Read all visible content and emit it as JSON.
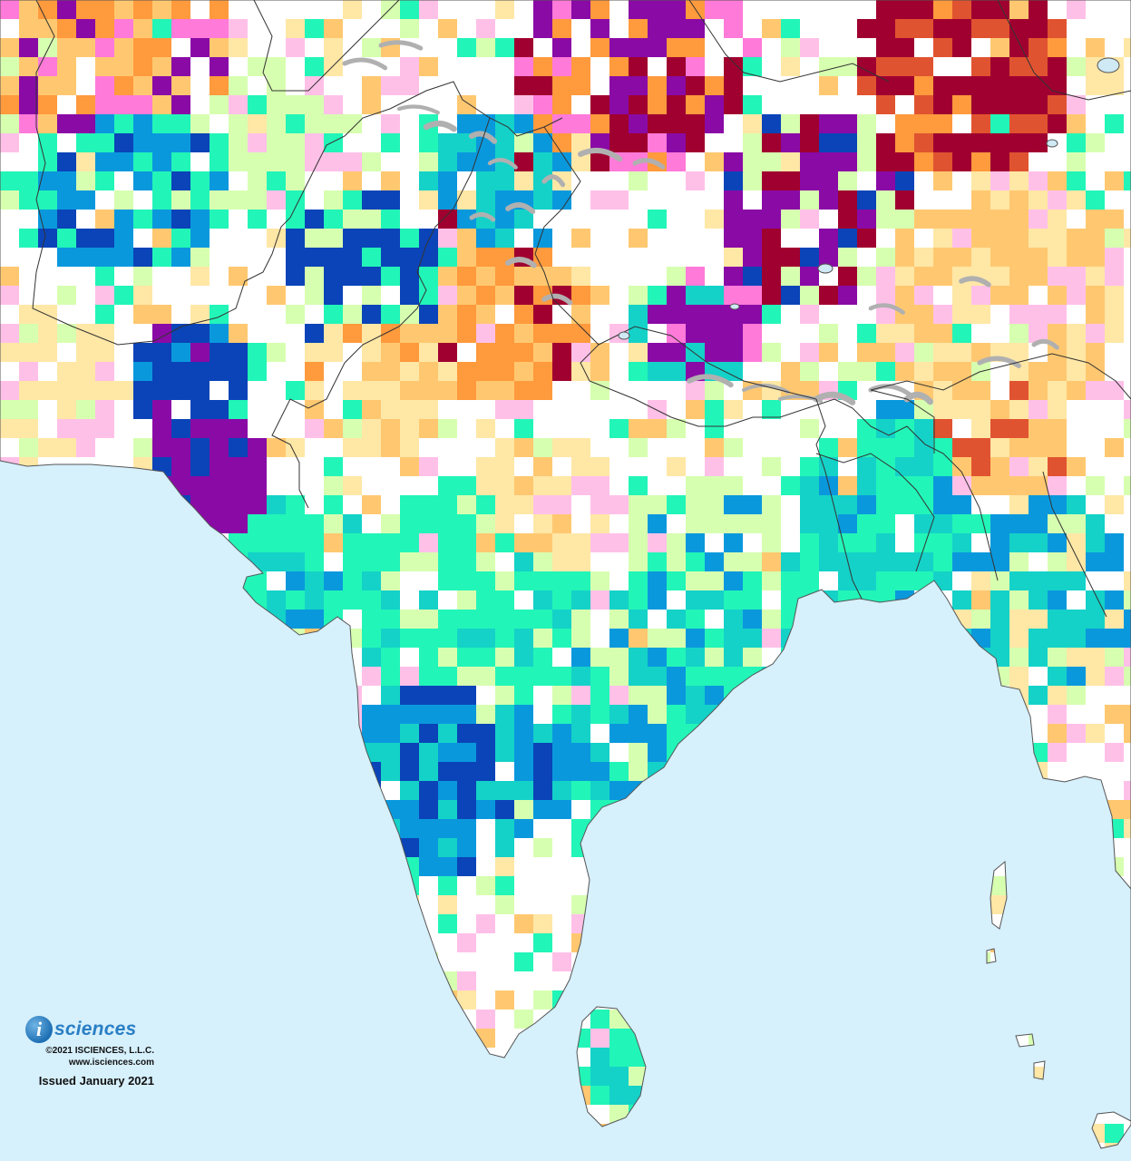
{
  "map": {
    "ocean_color": "#d6f0fc",
    "land_base_color": "#ffffff",
    "border_color": "#333333",
    "glacier_color": "#b0b0b0",
    "lake_color": "#cfe9f5"
  },
  "palette": {
    "dry_light": "#ffe7a6",
    "dry_mid": "#ffc870",
    "dry_orange": "#ff9a3d",
    "dry_red": "#e05330",
    "dry_deep": "#a0002f",
    "wet_pale": "#d7ffb0",
    "wet_aqua": "#22f5b8",
    "wet_teal": "#14d2c8",
    "wet_blue": "#0a98dd",
    "wet_navy": "#0a44b8",
    "surplus_pink": "#ffc0e8",
    "surplus_magenta": "#ff7ad9",
    "surplus_orchid": "#c84bc8",
    "surplus_purple": "#8a0aa6"
  },
  "credits": {
    "logo_letter": "i",
    "logo_word": "sciences",
    "copyright": "©2021 ISCIENCES, L.L.C.",
    "website": "www.isciences.com",
    "issued": "Issued January 2021"
  }
}
